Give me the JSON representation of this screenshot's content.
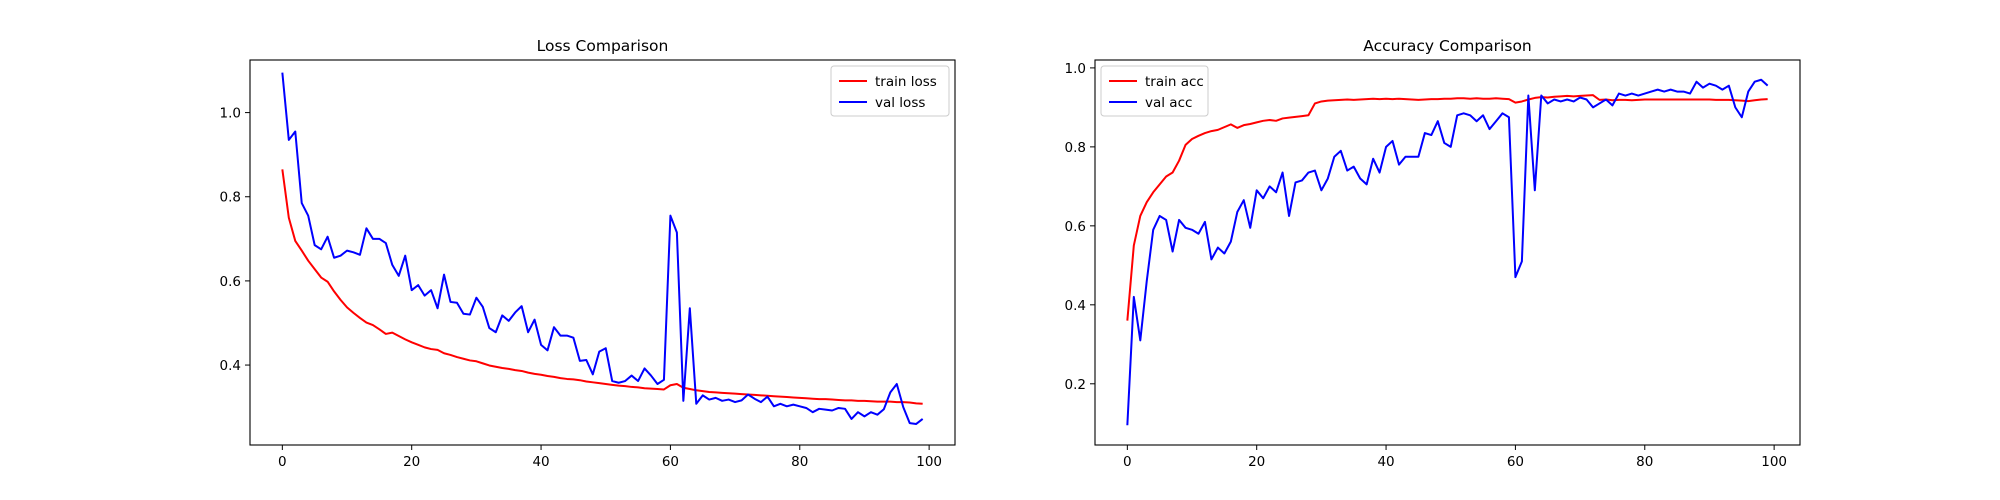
{
  "chart_data": [
    {
      "type": "line",
      "title": "Loss Comparison",
      "xlabel": "",
      "ylabel": "",
      "xlim": [
        -5,
        104
      ],
      "ylim": [
        0.21,
        1.125
      ],
      "xticks": [
        0,
        20,
        40,
        60,
        80,
        100
      ],
      "yticks": [
        0.4,
        0.6,
        0.8,
        1.0
      ],
      "xtick_labels": [
        "0",
        "20",
        "40",
        "60",
        "80",
        "100"
      ],
      "ytick_labels": [
        "0.4",
        "0.6",
        "0.8",
        "1.0"
      ],
      "grid": false,
      "legend_position": "upper right",
      "series": [
        {
          "name": "train loss",
          "color": "#ff0000",
          "values": [
            0.865,
            0.75,
            0.695,
            0.672,
            0.648,
            0.628,
            0.608,
            0.598,
            0.575,
            0.555,
            0.537,
            0.524,
            0.512,
            0.501,
            0.495,
            0.485,
            0.474,
            0.477,
            0.469,
            0.461,
            0.454,
            0.448,
            0.442,
            0.438,
            0.436,
            0.428,
            0.424,
            0.419,
            0.415,
            0.411,
            0.409,
            0.404,
            0.399,
            0.396,
            0.393,
            0.391,
            0.388,
            0.386,
            0.382,
            0.379,
            0.377,
            0.374,
            0.372,
            0.369,
            0.367,
            0.366,
            0.364,
            0.361,
            0.359,
            0.357,
            0.355,
            0.353,
            0.351,
            0.35,
            0.348,
            0.347,
            0.345,
            0.344,
            0.343,
            0.342,
            0.352,
            0.355,
            0.346,
            0.343,
            0.34,
            0.338,
            0.336,
            0.335,
            0.334,
            0.333,
            0.332,
            0.331,
            0.33,
            0.329,
            0.328,
            0.327,
            0.326,
            0.325,
            0.324,
            0.323,
            0.322,
            0.321,
            0.32,
            0.319,
            0.319,
            0.318,
            0.317,
            0.316,
            0.316,
            0.315,
            0.315,
            0.314,
            0.313,
            0.313,
            0.313,
            0.312,
            0.312,
            0.311,
            0.309,
            0.308
          ]
        },
        {
          "name": "val loss",
          "color": "#0000ff",
          "values": [
            1.095,
            0.935,
            0.955,
            0.785,
            0.755,
            0.685,
            0.675,
            0.705,
            0.655,
            0.66,
            0.672,
            0.668,
            0.662,
            0.725,
            0.7,
            0.7,
            0.69,
            0.638,
            0.612,
            0.66,
            0.578,
            0.59,
            0.565,
            0.578,
            0.535,
            0.615,
            0.55,
            0.548,
            0.522,
            0.52,
            0.56,
            0.538,
            0.488,
            0.478,
            0.518,
            0.505,
            0.525,
            0.54,
            0.478,
            0.508,
            0.448,
            0.435,
            0.49,
            0.47,
            0.47,
            0.465,
            0.41,
            0.412,
            0.378,
            0.432,
            0.44,
            0.362,
            0.358,
            0.362,
            0.375,
            0.362,
            0.392,
            0.375,
            0.355,
            0.365,
            0.755,
            0.715,
            0.315,
            0.535,
            0.308,
            0.328,
            0.318,
            0.322,
            0.315,
            0.318,
            0.312,
            0.316,
            0.33,
            0.32,
            0.312,
            0.325,
            0.302,
            0.308,
            0.302,
            0.306,
            0.302,
            0.298,
            0.288,
            0.296,
            0.294,
            0.292,
            0.298,
            0.296,
            0.272,
            0.288,
            0.278,
            0.288,
            0.282,
            0.295,
            0.335,
            0.355,
            0.3,
            0.262,
            0.26,
            0.272
          ]
        }
      ]
    },
    {
      "type": "line",
      "title": "Accuracy Comparison",
      "xlabel": "",
      "ylabel": "",
      "xlim": [
        -5,
        104
      ],
      "ylim": [
        0.045,
        1.02
      ],
      "xticks": [
        0,
        20,
        40,
        60,
        80,
        100
      ],
      "yticks": [
        0.2,
        0.4,
        0.6,
        0.8,
        1.0
      ],
      "xtick_labels": [
        "0",
        "20",
        "40",
        "60",
        "80",
        "100"
      ],
      "ytick_labels": [
        "0.2",
        "0.4",
        "0.6",
        "0.8",
        "1.0"
      ],
      "grid": false,
      "legend_position": "upper left",
      "series": [
        {
          "name": "train acc",
          "color": "#ff0000",
          "values": [
            0.36,
            0.55,
            0.625,
            0.66,
            0.685,
            0.705,
            0.725,
            0.735,
            0.765,
            0.805,
            0.82,
            0.828,
            0.835,
            0.84,
            0.843,
            0.85,
            0.857,
            0.848,
            0.855,
            0.858,
            0.862,
            0.866,
            0.868,
            0.866,
            0.872,
            0.874,
            0.876,
            0.878,
            0.88,
            0.91,
            0.915,
            0.917,
            0.918,
            0.919,
            0.92,
            0.919,
            0.92,
            0.921,
            0.922,
            0.921,
            0.922,
            0.921,
            0.922,
            0.921,
            0.92,
            0.919,
            0.92,
            0.921,
            0.921,
            0.922,
            0.922,
            0.923,
            0.923,
            0.922,
            0.923,
            0.922,
            0.922,
            0.923,
            0.922,
            0.921,
            0.912,
            0.915,
            0.92,
            0.924,
            0.926,
            0.925,
            0.927,
            0.928,
            0.929,
            0.928,
            0.929,
            0.93,
            0.931,
            0.919,
            0.92,
            0.918,
            0.919,
            0.919,
            0.918,
            0.919,
            0.92,
            0.92,
            0.92,
            0.92,
            0.92,
            0.92,
            0.92,
            0.92,
            0.92,
            0.92,
            0.92,
            0.919,
            0.919,
            0.919,
            0.918,
            0.917,
            0.916,
            0.918,
            0.92,
            0.921
          ]
        },
        {
          "name": "val acc",
          "color": "#0000ff",
          "values": [
            0.095,
            0.42,
            0.31,
            0.46,
            0.59,
            0.625,
            0.615,
            0.535,
            0.615,
            0.595,
            0.59,
            0.58,
            0.61,
            0.515,
            0.545,
            0.53,
            0.56,
            0.635,
            0.665,
            0.595,
            0.69,
            0.67,
            0.7,
            0.685,
            0.735,
            0.625,
            0.71,
            0.715,
            0.735,
            0.74,
            0.69,
            0.72,
            0.775,
            0.79,
            0.74,
            0.75,
            0.72,
            0.705,
            0.77,
            0.735,
            0.8,
            0.815,
            0.755,
            0.775,
            0.775,
            0.775,
            0.835,
            0.83,
            0.865,
            0.81,
            0.8,
            0.88,
            0.885,
            0.88,
            0.865,
            0.88,
            0.845,
            0.865,
            0.885,
            0.875,
            0.47,
            0.51,
            0.93,
            0.69,
            0.93,
            0.91,
            0.92,
            0.915,
            0.92,
            0.915,
            0.925,
            0.92,
            0.9,
            0.91,
            0.92,
            0.905,
            0.935,
            0.93,
            0.935,
            0.93,
            0.935,
            0.94,
            0.945,
            0.94,
            0.945,
            0.94,
            0.94,
            0.935,
            0.965,
            0.95,
            0.96,
            0.955,
            0.945,
            0.955,
            0.9,
            0.875,
            0.94,
            0.965,
            0.97,
            0.955
          ]
        }
      ]
    }
  ]
}
